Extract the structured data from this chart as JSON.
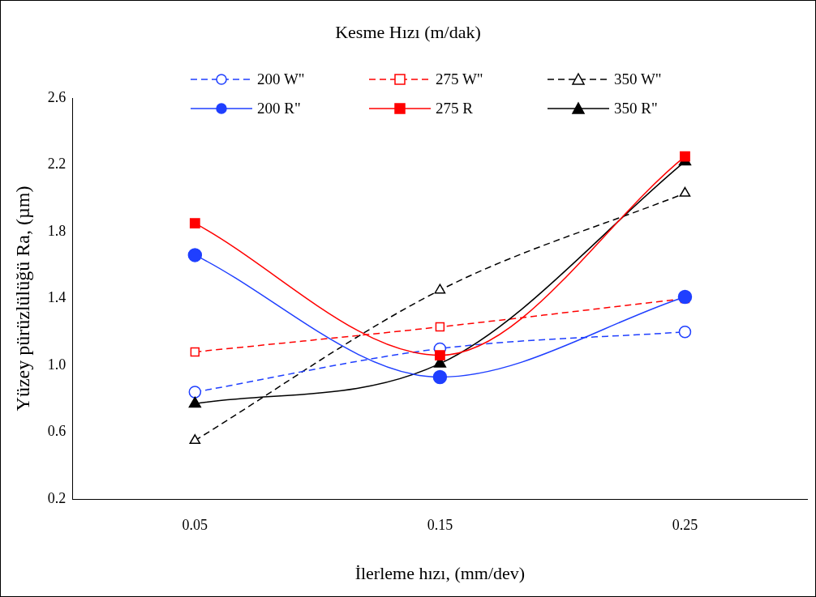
{
  "chart_data": {
    "type": "line",
    "legend_title": "Kesme Hızı (m/dak)",
    "xlabel": "İlerleme hızı, (mm/dev)",
    "ylabel": "Yüzey pürüzlülüğü Ra, (µm)",
    "categories": [
      "0.05",
      "0.15",
      "0.25"
    ],
    "ylim": [
      0.2,
      2.6
    ],
    "yticks": [
      0.2,
      0.6,
      {
        "value": 1,
        "label": "1.0"
      },
      1.4,
      1.8,
      2.2,
      2.6
    ],
    "grid": false,
    "legend": "top",
    "series": [
      {
        "name": "200 W\"",
        "color": "#1f3fff",
        "marker": "circle",
        "line_style": "dashed",
        "values": [
          0.84,
          1.1,
          1.2
        ]
      },
      {
        "name": "275 W\"",
        "color": "#ff0000",
        "marker": "square",
        "line_style": "dashed",
        "values": [
          1.08,
          1.23,
          1.4
        ]
      },
      {
        "name": "350 W\"",
        "color": "#000000",
        "marker": "triangle",
        "line_style": "dashed",
        "values": [
          0.55,
          1.45,
          2.03
        ]
      },
      {
        "name": "200 R\"",
        "color": "#1f3fff",
        "marker": "circle",
        "line_style": "solid",
        "values": [
          1.66,
          0.93,
          1.41
        ]
      },
      {
        "name": "275 R",
        "color": "#ff0000",
        "marker": "square",
        "line_style": "solid",
        "values": [
          1.85,
          1.06,
          2.25
        ]
      },
      {
        "name": "350 R\"",
        "color": "#000000",
        "marker": "triangle",
        "line_style": "solid",
        "values": [
          0.77,
          1.01,
          2.22
        ]
      }
    ]
  }
}
